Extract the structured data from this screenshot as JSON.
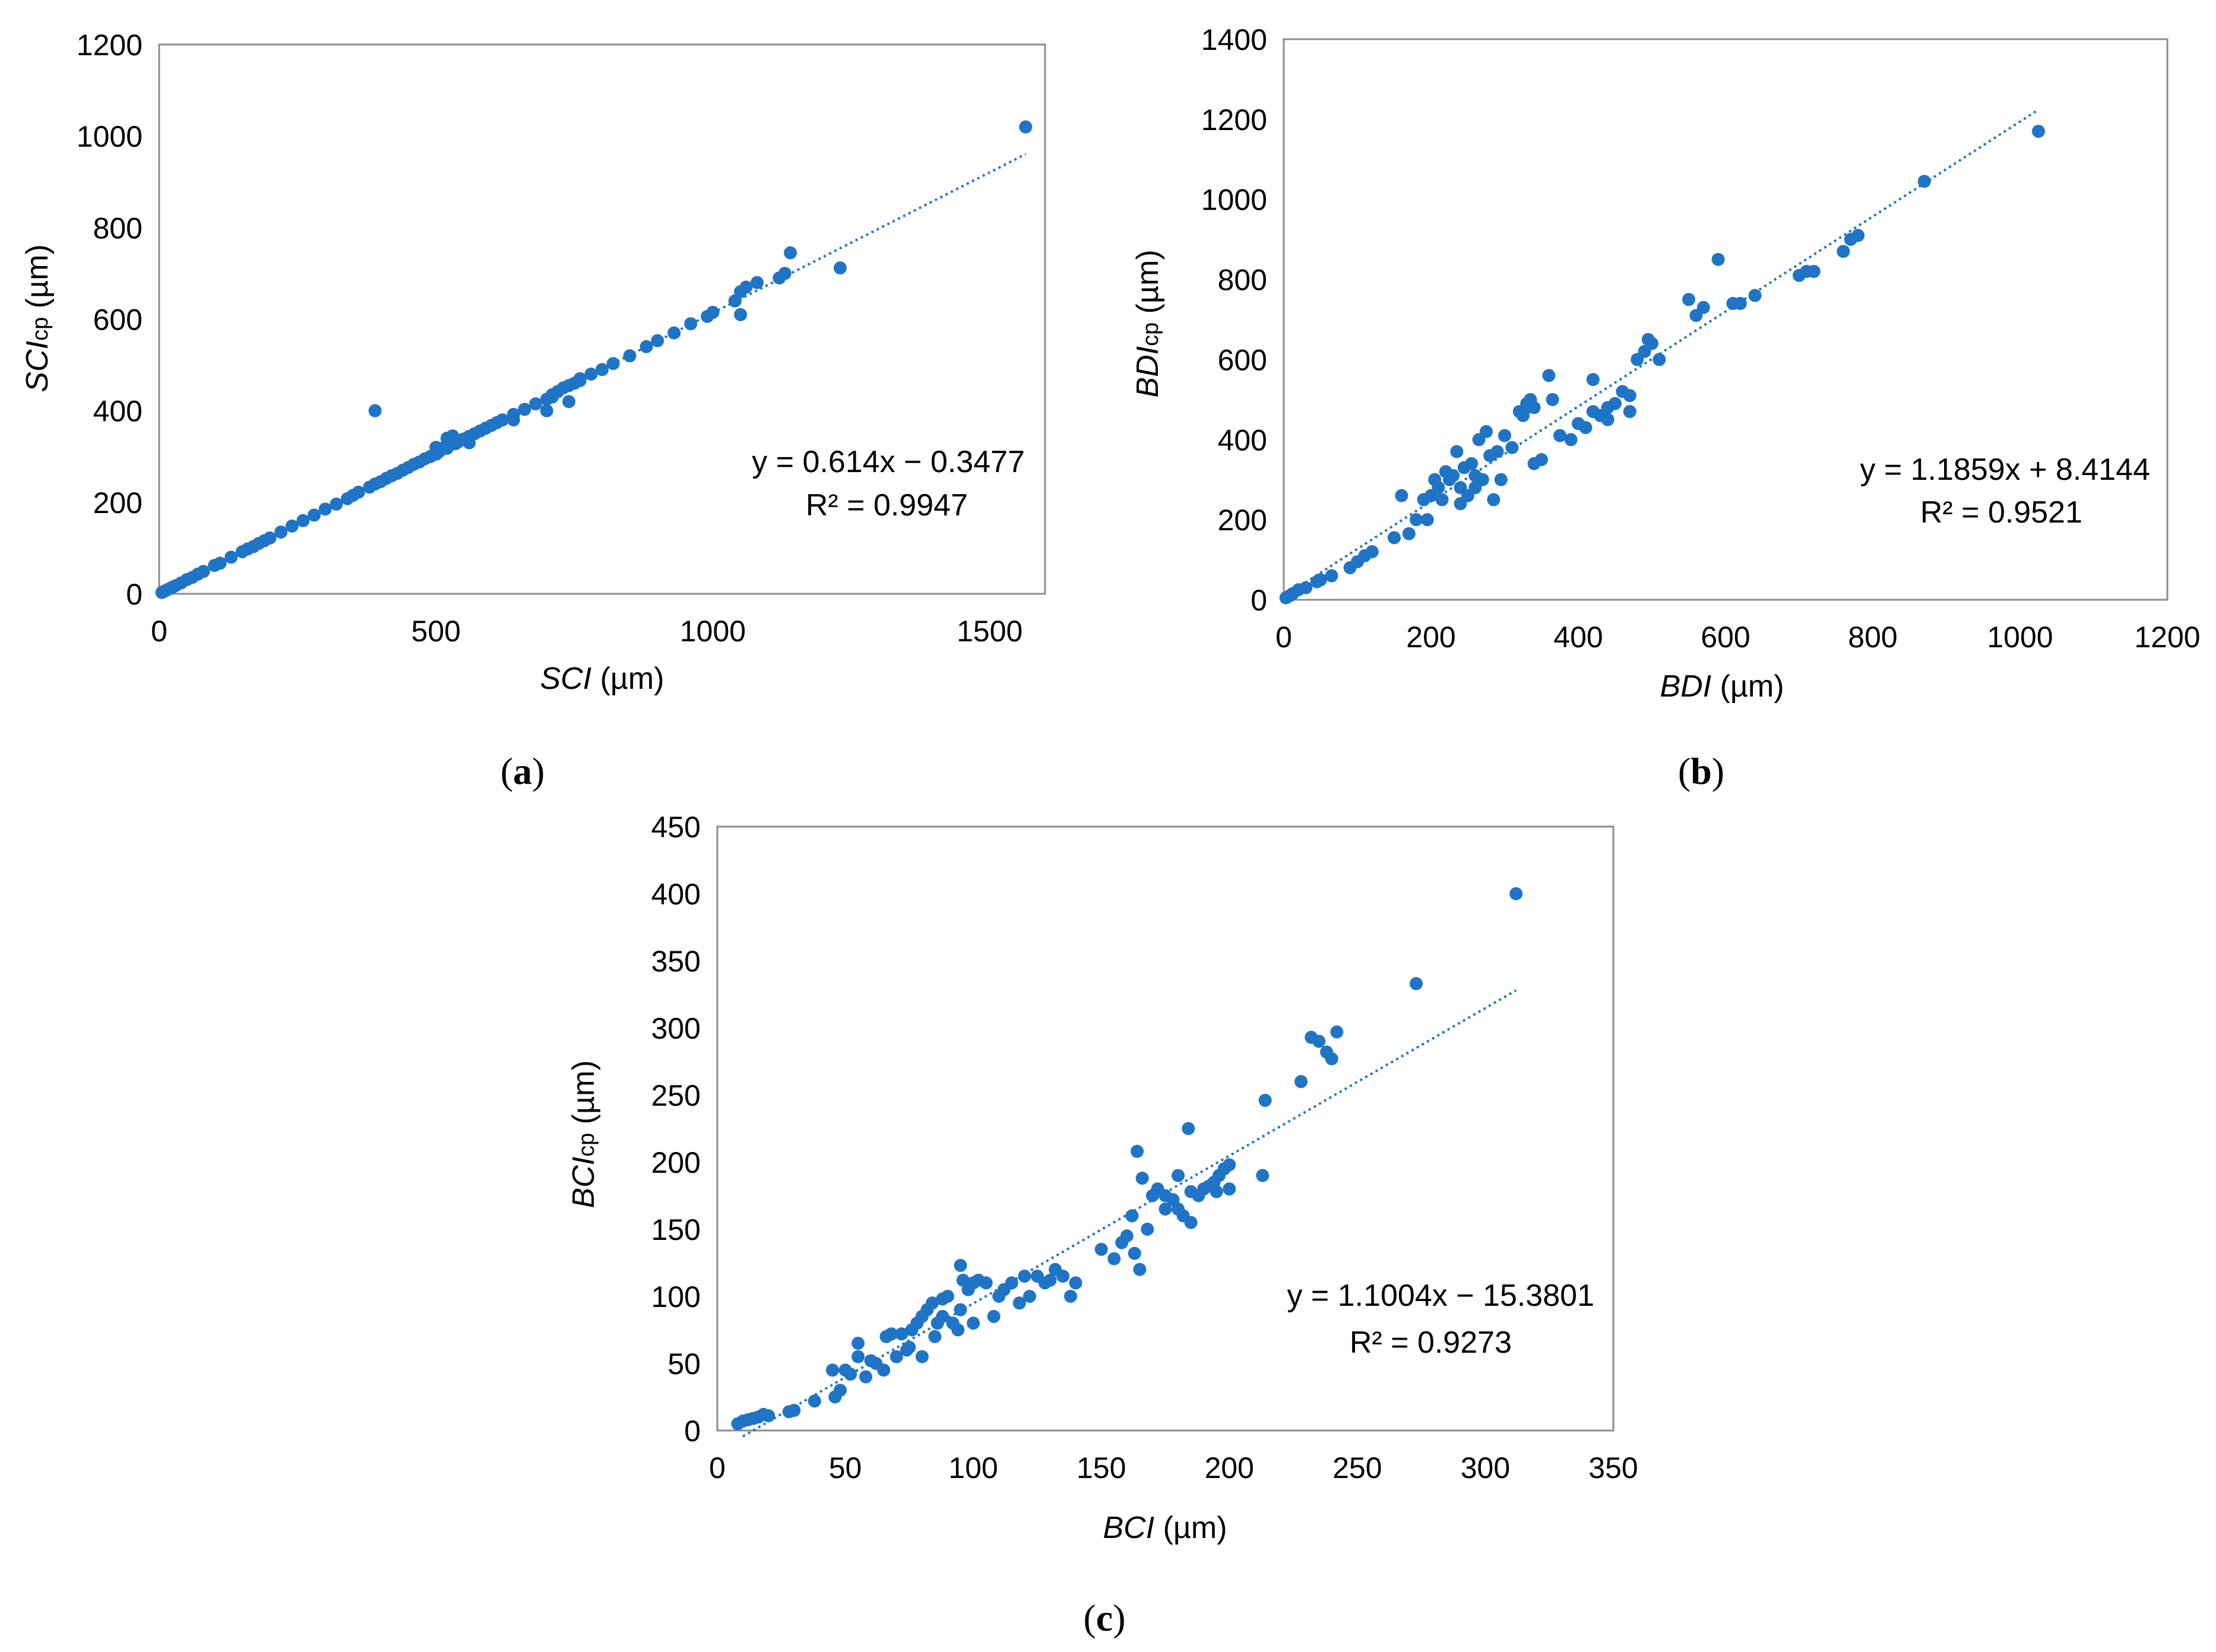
{
  "figure": {
    "marker_color": "#1f74c6",
    "trend_color": "#1f74c6",
    "frame_color": "#8c8c8c",
    "text_color": "#000000"
  },
  "chart_data": [
    {
      "id": "a",
      "type": "scatter",
      "panel_label": "a",
      "xlabel_italic": "SCI",
      "xlabel_rest": " (µm)",
      "ylabel_italic": "SCI",
      "ylabel_sub": "cp",
      "ylabel_rest": " (µm)",
      "xlim": [
        0,
        1600
      ],
      "ylim": [
        0,
        1200
      ],
      "xticks": [
        0,
        500,
        1000,
        1500
      ],
      "yticks": [
        0,
        200,
        400,
        600,
        800,
        1000,
        1200
      ],
      "trendline": {
        "slope": 0.614,
        "intercept": -0.3477,
        "x_range": [
          5,
          1565
        ]
      },
      "equation": "y = 0.614x − 0.3477",
      "r2": "R² = 0.9947",
      "points": [
        [
          5,
          3
        ],
        [
          10,
          6
        ],
        [
          15,
          9
        ],
        [
          20,
          12
        ],
        [
          25,
          15
        ],
        [
          30,
          18
        ],
        [
          40,
          24
        ],
        [
          50,
          31
        ],
        [
          60,
          36
        ],
        [
          70,
          43
        ],
        [
          80,
          49
        ],
        [
          100,
          62
        ],
        [
          110,
          67
        ],
        [
          130,
          80
        ],
        [
          150,
          92
        ],
        [
          160,
          98
        ],
        [
          170,
          103
        ],
        [
          180,
          110
        ],
        [
          190,
          116
        ],
        [
          200,
          122
        ],
        [
          220,
          135
        ],
        [
          240,
          148
        ],
        [
          260,
          160
        ],
        [
          280,
          172
        ],
        [
          300,
          185
        ],
        [
          320,
          196
        ],
        [
          340,
          208
        ],
        [
          350,
          215
        ],
        [
          360,
          222
        ],
        [
          380,
          233
        ],
        [
          390,
          240
        ],
        [
          400,
          245
        ],
        [
          410,
          252
        ],
        [
          420,
          258
        ],
        [
          430,
          263
        ],
        [
          440,
          270
        ],
        [
          450,
          276
        ],
        [
          460,
          283
        ],
        [
          470,
          288
        ],
        [
          480,
          295
        ],
        [
          490,
          300
        ],
        [
          500,
          305
        ],
        [
          505,
          310
        ],
        [
          510,
          315
        ],
        [
          515,
          320
        ],
        [
          520,
          318
        ],
        [
          525,
          325
        ],
        [
          530,
          330
        ],
        [
          535,
          328
        ],
        [
          540,
          332
        ],
        [
          545,
          336
        ],
        [
          550,
          338
        ],
        [
          555,
          340
        ],
        [
          560,
          344
        ],
        [
          570,
          350
        ],
        [
          580,
          356
        ],
        [
          590,
          362
        ],
        [
          600,
          368
        ],
        [
          610,
          374
        ],
        [
          620,
          380
        ],
        [
          640,
          392
        ],
        [
          660,
          403
        ],
        [
          680,
          415
        ],
        [
          700,
          425
        ],
        [
          710,
          435
        ],
        [
          720,
          442
        ],
        [
          730,
          450
        ],
        [
          740,
          455
        ],
        [
          750,
          460
        ],
        [
          760,
          466
        ],
        [
          780,
          480
        ],
        [
          800,
          490
        ],
        [
          820,
          503
        ],
        [
          850,
          520
        ],
        [
          880,
          540
        ],
        [
          900,
          553
        ],
        [
          930,
          570
        ],
        [
          960,
          590
        ],
        [
          990,
          606
        ],
        [
          1000,
          615
        ],
        [
          1040,
          640
        ],
        [
          1050,
          660
        ],
        [
          1060,
          670
        ],
        [
          1080,
          680
        ],
        [
          1120,
          690
        ],
        [
          1130,
          700
        ],
        [
          1140,
          745
        ],
        [
          1230,
          712
        ],
        [
          1565,
          1020
        ],
        [
          390,
          400
        ],
        [
          500,
          320
        ],
        [
          520,
          340
        ],
        [
          530,
          345
        ],
        [
          560,
          330
        ],
        [
          640,
          380
        ],
        [
          700,
          400
        ],
        [
          710,
          430
        ],
        [
          740,
          420
        ],
        [
          760,
          470
        ],
        [
          1050,
          610
        ]
      ]
    },
    {
      "id": "b",
      "type": "scatter",
      "panel_label": "b",
      "xlabel_italic": "BDI",
      "xlabel_rest": " (µm)",
      "ylabel_italic": "BDI",
      "ylabel_sub": "cp",
      "ylabel_rest": " (µm)",
      "xlim": [
        0,
        1200
      ],
      "ylim": [
        0,
        1400
      ],
      "xticks": [
        0,
        200,
        400,
        600,
        800,
        1000,
        1200
      ],
      "yticks": [
        0,
        200,
        400,
        600,
        800,
        1000,
        1200,
        1400
      ],
      "trendline": {
        "slope": 1.1859,
        "intercept": 8.4144,
        "x_range": [
          2,
          1025
        ]
      },
      "equation": "y = 1.1859x + 8.4144",
      "r2": "R² = 0.9521",
      "points": [
        [
          3,
          5
        ],
        [
          8,
          10
        ],
        [
          12,
          15
        ],
        [
          20,
          25
        ],
        [
          30,
          30
        ],
        [
          45,
          45
        ],
        [
          50,
          50
        ],
        [
          65,
          60
        ],
        [
          90,
          80
        ],
        [
          100,
          95
        ],
        [
          110,
          110
        ],
        [
          120,
          120
        ],
        [
          150,
          155
        ],
        [
          160,
          260
        ],
        [
          170,
          165
        ],
        [
          180,
          200
        ],
        [
          190,
          250
        ],
        [
          195,
          200
        ],
        [
          200,
          260
        ],
        [
          205,
          300
        ],
        [
          210,
          280
        ],
        [
          215,
          250
        ],
        [
          220,
          320
        ],
        [
          225,
          300
        ],
        [
          230,
          310
        ],
        [
          235,
          370
        ],
        [
          240,
          240
        ],
        [
          245,
          330
        ],
        [
          250,
          260
        ],
        [
          255,
          340
        ],
        [
          260,
          280
        ],
        [
          265,
          400
        ],
        [
          270,
          300
        ],
        [
          275,
          420
        ],
        [
          280,
          360
        ],
        [
          285,
          250
        ],
        [
          290,
          370
        ],
        [
          295,
          300
        ],
        [
          300,
          410
        ],
        [
          310,
          380
        ],
        [
          320,
          470
        ],
        [
          325,
          460
        ],
        [
          330,
          490
        ],
        [
          335,
          500
        ],
        [
          340,
          480
        ],
        [
          350,
          350
        ],
        [
          360,
          560
        ],
        [
          365,
          500
        ],
        [
          375,
          410
        ],
        [
          390,
          400
        ],
        [
          400,
          440
        ],
        [
          410,
          430
        ],
        [
          420,
          550
        ],
        [
          430,
          460
        ],
        [
          440,
          480
        ],
        [
          450,
          490
        ],
        [
          460,
          520
        ],
        [
          470,
          470
        ],
        [
          480,
          600
        ],
        [
          490,
          620
        ],
        [
          495,
          650
        ],
        [
          500,
          640
        ],
        [
          510,
          600
        ],
        [
          550,
          750
        ],
        [
          560,
          710
        ],
        [
          570,
          730
        ],
        [
          590,
          850
        ],
        [
          610,
          740
        ],
        [
          620,
          740
        ],
        [
          640,
          760
        ],
        [
          700,
          810
        ],
        [
          710,
          820
        ],
        [
          720,
          820
        ],
        [
          760,
          870
        ],
        [
          770,
          900
        ],
        [
          780,
          910
        ],
        [
          870,
          1045
        ],
        [
          1025,
          1170
        ],
        [
          240,
          280
        ],
        [
          260,
          310
        ],
        [
          330,
          480
        ],
        [
          340,
          340
        ],
        [
          420,
          470
        ],
        [
          440,
          450
        ],
        [
          470,
          510
        ]
      ]
    },
    {
      "id": "c",
      "type": "scatter",
      "panel_label": "c",
      "xlabel_italic": "BCI",
      "xlabel_rest": " (µm)",
      "ylabel_italic": "BCI",
      "ylabel_sub": "cp",
      "ylabel_rest": " (µm)",
      "xlim": [
        0,
        350
      ],
      "ylim": [
        0,
        450
      ],
      "xticks": [
        0,
        50,
        100,
        150,
        200,
        250,
        300,
        350
      ],
      "yticks": [
        0,
        50,
        100,
        150,
        200,
        250,
        300,
        350,
        400,
        450
      ],
      "trendline": {
        "slope": 1.1004,
        "intercept": -15.3801,
        "x_range": [
          10,
          312
        ]
      },
      "equation": "y = 1.1004x − 15.3801",
      "r2": "R² = 0.9273",
      "points": [
        [
          8,
          5
        ],
        [
          10,
          7
        ],
        [
          12,
          8
        ],
        [
          14,
          9
        ],
        [
          16,
          10
        ],
        [
          18,
          12
        ],
        [
          20,
          11
        ],
        [
          28,
          14
        ],
        [
          30,
          15
        ],
        [
          38,
          22
        ],
        [
          45,
          45
        ],
        [
          46,
          25
        ],
        [
          48,
          30
        ],
        [
          50,
          45
        ],
        [
          52,
          42
        ],
        [
          55,
          55
        ],
        [
          55,
          65
        ],
        [
          58,
          40
        ],
        [
          60,
          52
        ],
        [
          62,
          50
        ],
        [
          65,
          45
        ],
        [
          66,
          70
        ],
        [
          68,
          72
        ],
        [
          70,
          55
        ],
        [
          72,
          72
        ],
        [
          74,
          60
        ],
        [
          75,
          62
        ],
        [
          76,
          75
        ],
        [
          78,
          80
        ],
        [
          80,
          55
        ],
        [
          80,
          85
        ],
        [
          82,
          90
        ],
        [
          84,
          95
        ],
        [
          85,
          70
        ],
        [
          86,
          80
        ],
        [
          88,
          98
        ],
        [
          88,
          85
        ],
        [
          90,
          100
        ],
        [
          92,
          80
        ],
        [
          94,
          75
        ],
        [
          95,
          90
        ],
        [
          95,
          123
        ],
        [
          96,
          112
        ],
        [
          98,
          105
        ],
        [
          100,
          80
        ],
        [
          100,
          110
        ],
        [
          102,
          112
        ],
        [
          105,
          110
        ],
        [
          108,
          85
        ],
        [
          110,
          100
        ],
        [
          112,
          105
        ],
        [
          115,
          110
        ],
        [
          118,
          95
        ],
        [
          120,
          115
        ],
        [
          122,
          100
        ],
        [
          125,
          115
        ],
        [
          128,
          110
        ],
        [
          130,
          112
        ],
        [
          132,
          120
        ],
        [
          135,
          115
        ],
        [
          138,
          100
        ],
        [
          140,
          110
        ],
        [
          150,
          135
        ],
        [
          155,
          128
        ],
        [
          158,
          140
        ],
        [
          160,
          145
        ],
        [
          162,
          160
        ],
        [
          163,
          132
        ],
        [
          164,
          208
        ],
        [
          165,
          120
        ],
        [
          166,
          188
        ],
        [
          168,
          150
        ],
        [
          170,
          175
        ],
        [
          172,
          180
        ],
        [
          175,
          175
        ],
        [
          178,
          172
        ],
        [
          180,
          165
        ],
        [
          182,
          160
        ],
        [
          184,
          225
        ],
        [
          185,
          155
        ],
        [
          188,
          175
        ],
        [
          190,
          180
        ],
        [
          192,
          182
        ],
        [
          194,
          185
        ],
        [
          196,
          190
        ],
        [
          198,
          195
        ],
        [
          200,
          180
        ],
        [
          200,
          198
        ],
        [
          213,
          190
        ],
        [
          214,
          246
        ],
        [
          228,
          260
        ],
        [
          232,
          293
        ],
        [
          235,
          290
        ],
        [
          238,
          282
        ],
        [
          240,
          277
        ],
        [
          242,
          297
        ],
        [
          273,
          333
        ],
        [
          312,
          400
        ],
        [
          175,
          165
        ],
        [
          180,
          190
        ],
        [
          185,
          178
        ],
        [
          195,
          178
        ]
      ]
    }
  ]
}
